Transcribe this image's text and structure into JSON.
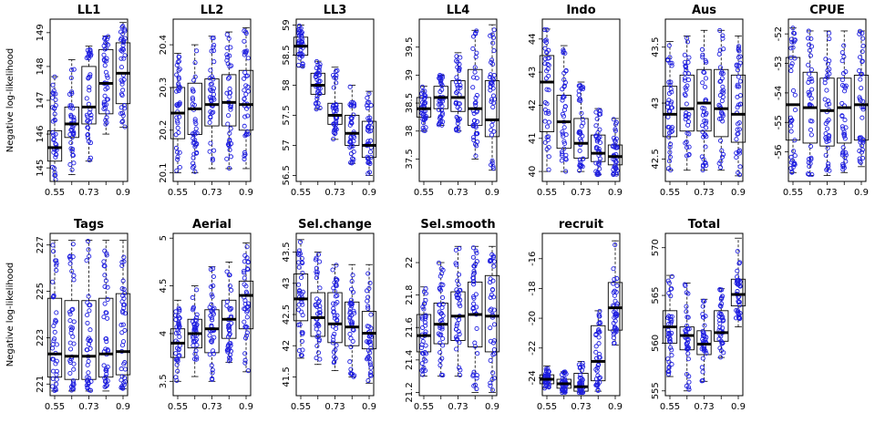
{
  "figure": {
    "ylabel": "Negative log-likelihood",
    "point_color": "#1f1fe0"
  },
  "chart_data": [
    {
      "type": "box",
      "title": "LL1",
      "categories": [
        "0.55",
        "0.64",
        "0.73",
        "0.82",
        "0.9"
      ],
      "x_tick_labels": [
        "0.55",
        "0.73",
        "0.9"
      ],
      "ylim": [
        144.6,
        149.4
      ],
      "y_ticks": [
        145,
        146,
        147,
        148,
        149
      ],
      "series": [
        {
          "median": 145.6,
          "q1": 145.2,
          "q3": 146.1,
          "min": 144.6,
          "max": 147.7
        },
        {
          "median": 146.3,
          "q1": 145.9,
          "q3": 146.8,
          "min": 144.8,
          "max": 148.2
        },
        {
          "median": 146.8,
          "q1": 146.3,
          "q3": 148.0,
          "min": 145.2,
          "max": 148.6
        },
        {
          "median": 147.5,
          "q1": 146.6,
          "q3": 148.5,
          "min": 146.0,
          "max": 148.9
        },
        {
          "median": 147.8,
          "q1": 146.9,
          "q3": 148.7,
          "min": 146.2,
          "max": 149.3
        }
      ]
    },
    {
      "type": "box",
      "title": "LL2",
      "categories": [
        "0.55",
        "0.64",
        "0.73",
        "0.82",
        "0.9"
      ],
      "x_tick_labels": [
        "0.55",
        "0.73",
        "0.9"
      ],
      "ylim": [
        20.08,
        20.46
      ],
      "y_ticks": [
        20.1,
        20.2,
        20.3,
        20.4
      ],
      "series": [
        {
          "median": 20.24,
          "q1": 20.18,
          "q3": 20.3,
          "min": 20.1,
          "max": 20.38
        },
        {
          "median": 20.25,
          "q1": 20.19,
          "q3": 20.31,
          "min": 20.1,
          "max": 20.4
        },
        {
          "median": 20.26,
          "q1": 20.21,
          "q3": 20.32,
          "min": 20.11,
          "max": 20.42
        },
        {
          "median": 20.265,
          "q1": 20.21,
          "q3": 20.33,
          "min": 20.11,
          "max": 20.43
        },
        {
          "median": 20.26,
          "q1": 20.2,
          "q3": 20.34,
          "min": 20.11,
          "max": 20.44
        }
      ]
    },
    {
      "type": "box",
      "title": "LL3",
      "categories": [
        "0.55",
        "0.64",
        "0.73",
        "0.82",
        "0.9"
      ],
      "x_tick_labels": [
        "0.55",
        "0.73",
        "0.9"
      ],
      "ylim": [
        56.4,
        59.1
      ],
      "y_ticks": [
        56.5,
        57.0,
        57.5,
        58.0,
        58.5,
        59.0
      ],
      "series": [
        {
          "median": 58.65,
          "q1": 58.5,
          "q3": 58.8,
          "min": 58.3,
          "max": 59.0
        },
        {
          "median": 58.0,
          "q1": 57.85,
          "q3": 58.2,
          "min": 57.6,
          "max": 58.4
        },
        {
          "median": 57.5,
          "q1": 57.35,
          "q3": 57.7,
          "min": 57.1,
          "max": 58.3
        },
        {
          "median": 57.2,
          "q1": 57.0,
          "q3": 57.5,
          "min": 56.7,
          "max": 58.0
        },
        {
          "median": 57.0,
          "q1": 56.8,
          "q3": 57.4,
          "min": 56.5,
          "max": 57.9
        }
      ]
    },
    {
      "type": "box",
      "title": "LL4",
      "categories": [
        "0.55",
        "0.64",
        "0.73",
        "0.82",
        "0.9"
      ],
      "x_tick_labels": [
        "0.55",
        "0.73",
        "0.9"
      ],
      "ylim": [
        37.1,
        40.0
      ],
      "y_ticks": [
        37.5,
        38.0,
        38.5,
        39.0,
        39.5
      ],
      "series": [
        {
          "median": 38.4,
          "q1": 38.25,
          "q3": 38.6,
          "min": 38.0,
          "max": 38.8
        },
        {
          "median": 38.6,
          "q1": 38.4,
          "q3": 38.8,
          "min": 38.1,
          "max": 39.0
        },
        {
          "median": 38.6,
          "q1": 38.35,
          "q3": 38.9,
          "min": 38.0,
          "max": 39.4
        },
        {
          "median": 38.4,
          "q1": 38.1,
          "q3": 39.1,
          "min": 37.5,
          "max": 39.8
        },
        {
          "median": 38.2,
          "q1": 37.9,
          "q3": 38.9,
          "min": 37.3,
          "max": 39.9
        }
      ]
    },
    {
      "type": "box",
      "title": "Indo",
      "categories": [
        "0.55",
        "0.64",
        "0.73",
        "0.82",
        "0.9"
      ],
      "x_tick_labels": [
        "0.55",
        "0.73",
        "0.9"
      ],
      "ylim": [
        39.7,
        44.6
      ],
      "y_ticks": [
        40,
        41,
        42,
        43,
        44
      ],
      "series": [
        {
          "median": 42.7,
          "q1": 41.2,
          "q3": 43.5,
          "min": 40.0,
          "max": 44.3
        },
        {
          "median": 41.5,
          "q1": 40.7,
          "q3": 42.3,
          "min": 40.0,
          "max": 43.8
        },
        {
          "median": 40.85,
          "q1": 40.4,
          "q3": 41.6,
          "min": 40.0,
          "max": 42.7
        },
        {
          "median": 40.55,
          "q1": 40.3,
          "q3": 41.1,
          "min": 39.9,
          "max": 41.9
        },
        {
          "median": 40.45,
          "q1": 40.2,
          "q3": 40.8,
          "min": 39.9,
          "max": 41.6
        }
      ]
    },
    {
      "type": "box",
      "title": "Aus",
      "categories": [
        "0.55",
        "0.64",
        "0.73",
        "0.82",
        "0.9"
      ],
      "x_tick_labels": [
        "0.55",
        "0.73",
        "0.9"
      ],
      "ylim": [
        42.3,
        43.75
      ],
      "y_ticks": [
        42.5,
        43.0,
        43.5
      ],
      "series": [
        {
          "median": 42.9,
          "q1": 42.7,
          "q3": 43.15,
          "min": 42.4,
          "max": 43.55
        },
        {
          "median": 42.95,
          "q1": 42.75,
          "q3": 43.25,
          "min": 42.4,
          "max": 43.6
        },
        {
          "median": 43.0,
          "q1": 42.75,
          "q3": 43.3,
          "min": 42.4,
          "max": 43.65
        },
        {
          "median": 42.95,
          "q1": 42.7,
          "q3": 43.3,
          "min": 42.4,
          "max": 43.65
        },
        {
          "median": 42.9,
          "q1": 42.65,
          "q3": 43.25,
          "min": 42.35,
          "max": 43.6
        }
      ]
    },
    {
      "type": "box",
      "title": "CPUE",
      "categories": [
        "0.55",
        "0.64",
        "0.73",
        "0.82",
        "0.9"
      ],
      "x_tick_labels": [
        "0.55",
        "0.73",
        "0.9"
      ],
      "ylim": [
        -57.0,
        -51.5
      ],
      "y_ticks": [
        -56,
        -55,
        -54,
        -53,
        -52
      ],
      "series": [
        {
          "median": -54.4,
          "q1": -55.6,
          "q3": -52.8,
          "min": -56.7,
          "max": -51.8
        },
        {
          "median": -54.5,
          "q1": -55.7,
          "q3": -53.3,
          "min": -56.8,
          "max": -51.9
        },
        {
          "median": -54.6,
          "q1": -55.8,
          "q3": -53.5,
          "min": -56.8,
          "max": -51.9
        },
        {
          "median": -54.5,
          "q1": -55.7,
          "q3": -53.5,
          "min": -56.7,
          "max": -51.9
        },
        {
          "median": -54.4,
          "q1": -55.6,
          "q3": -53.4,
          "min": -56.5,
          "max": -51.9
        }
      ]
    },
    {
      "type": "box",
      "title": "Tags",
      "categories": [
        "0.55",
        "0.64",
        "0.73",
        "0.82",
        "0.9"
      ],
      "x_tick_labels": [
        "0.55",
        "0.73",
        "0.9"
      ],
      "ylim": [
        220.5,
        227.5
      ],
      "y_ticks": [
        221,
        223,
        225,
        227
      ],
      "series": [
        {
          "median": 222.3,
          "q1": 221.3,
          "q3": 224.7,
          "min": 220.7,
          "max": 227.2
        },
        {
          "median": 222.2,
          "q1": 221.2,
          "q3": 224.6,
          "min": 220.7,
          "max": 227.2
        },
        {
          "median": 222.2,
          "q1": 221.2,
          "q3": 224.6,
          "min": 220.7,
          "max": 227.2
        },
        {
          "median": 222.3,
          "q1": 221.3,
          "q3": 224.7,
          "min": 220.7,
          "max": 227.2
        },
        {
          "median": 222.4,
          "q1": 221.4,
          "q3": 224.9,
          "min": 220.8,
          "max": 227.2
        }
      ]
    },
    {
      "type": "box",
      "title": "Aerial",
      "categories": [
        "0.55",
        "0.64",
        "0.73",
        "0.82",
        "0.9"
      ],
      "x_tick_labels": [
        "0.55",
        "0.73",
        "0.9"
      ],
      "ylim": [
        3.35,
        5.05
      ],
      "y_ticks": [
        3.5,
        4.0,
        4.5,
        5.0
      ],
      "series": [
        {
          "median": 3.9,
          "q1": 3.75,
          "q3": 4.05,
          "min": 3.5,
          "max": 4.35
        },
        {
          "median": 4.0,
          "q1": 3.85,
          "q3": 4.15,
          "min": 3.55,
          "max": 4.5
        },
        {
          "median": 4.05,
          "q1": 3.8,
          "q3": 4.25,
          "min": 3.5,
          "max": 4.7
        },
        {
          "median": 4.15,
          "q1": 3.95,
          "q3": 4.35,
          "min": 3.7,
          "max": 4.75
        },
        {
          "median": 4.4,
          "q1": 4.05,
          "q3": 4.55,
          "min": 3.6,
          "max": 4.95
        }
      ]
    },
    {
      "type": "box",
      "title": "Sel.change",
      "categories": [
        "0.55",
        "0.64",
        "0.73",
        "0.82",
        "0.9"
      ],
      "x_tick_labels": [
        "0.55",
        "0.73",
        "0.9"
      ],
      "ylim": [
        41.2,
        43.8
      ],
      "y_ticks": [
        41.5,
        42.0,
        42.5,
        43.0,
        43.5
      ],
      "series": [
        {
          "median": 42.75,
          "q1": 42.4,
          "q3": 43.15,
          "min": 41.8,
          "max": 43.7
        },
        {
          "median": 42.45,
          "q1": 42.15,
          "q3": 42.85,
          "min": 41.7,
          "max": 43.5
        },
        {
          "median": 42.35,
          "q1": 42.05,
          "q3": 42.85,
          "min": 41.6,
          "max": 43.3
        },
        {
          "median": 42.3,
          "q1": 42.0,
          "q3": 42.7,
          "min": 41.5,
          "max": 43.3
        },
        {
          "median": 42.2,
          "q1": 41.95,
          "q3": 42.55,
          "min": 41.4,
          "max": 43.3
        }
      ]
    },
    {
      "type": "box",
      "title": "Sel.smooth",
      "categories": [
        "0.55",
        "0.64",
        "0.73",
        "0.82",
        "0.9"
      ],
      "x_tick_labels": [
        "0.55",
        "0.73",
        "0.9"
      ],
      "ylim": [
        21.18,
        22.18
      ],
      "y_ticks": [
        21.2,
        21.4,
        21.6,
        21.8,
        22.0
      ],
      "series": [
        {
          "median": 21.55,
          "q1": 21.45,
          "q3": 21.68,
          "min": 21.3,
          "max": 21.85
        },
        {
          "median": 21.62,
          "q1": 21.5,
          "q3": 21.75,
          "min": 21.3,
          "max": 22.0
        },
        {
          "median": 21.67,
          "q1": 21.52,
          "q3": 21.82,
          "min": 21.3,
          "max": 22.1
        },
        {
          "median": 21.68,
          "q1": 21.48,
          "q3": 21.88,
          "min": 21.2,
          "max": 22.1
        },
        {
          "median": 21.67,
          "q1": 21.45,
          "q3": 21.92,
          "min": 21.2,
          "max": 22.1
        }
      ]
    },
    {
      "type": "box",
      "title": "recruit",
      "categories": [
        "0.55",
        "0.64",
        "0.73",
        "0.82",
        "0.9"
      ],
      "x_tick_labels": [
        "0.55",
        "0.73",
        "0.9"
      ],
      "ylim": [
        -25.2,
        -14.3
      ],
      "y_ticks": [
        -24,
        -22,
        -20,
        -18,
        -16
      ],
      "series": [
        {
          "median": -24.1,
          "q1": -24.4,
          "q3": -23.8,
          "min": -24.7,
          "max": -23.2
        },
        {
          "median": -24.4,
          "q1": -24.7,
          "q3": -24.1,
          "min": -25.0,
          "max": -23.6
        },
        {
          "median": -24.6,
          "q1": -24.9,
          "q3": -23.7,
          "min": -25.0,
          "max": -22.9
        },
        {
          "median": -22.9,
          "q1": -24.2,
          "q3": -20.5,
          "min": -24.9,
          "max": -19.5
        },
        {
          "median": -19.3,
          "q1": -20.8,
          "q3": -17.6,
          "min": -21.8,
          "max": -14.8
        }
      ]
    },
    {
      "type": "box",
      "title": "Total",
      "categories": [
        "0.55",
        "0.64",
        "0.73",
        "0.82",
        "0.9"
      ],
      "x_tick_labels": [
        "0.55",
        "0.73",
        "0.9"
      ],
      "ylim": [
        554.5,
        571.5
      ],
      "y_ticks": [
        555,
        560,
        565,
        570
      ],
      "series": [
        {
          "median": 561.7,
          "q1": 560.0,
          "q3": 563.4,
          "min": 556.5,
          "max": 567.1
        },
        {
          "median": 560.8,
          "q1": 559.3,
          "q3": 561.7,
          "min": 555.0,
          "max": 566.3
        },
        {
          "median": 559.9,
          "q1": 558.8,
          "q3": 561.3,
          "min": 556.0,
          "max": 564.6
        },
        {
          "median": 561.1,
          "q1": 560.2,
          "q3": 563.4,
          "min": 558.5,
          "max": 565.7
        },
        {
          "median": 565.1,
          "q1": 563.9,
          "q3": 566.7,
          "min": 561.7,
          "max": 571.0
        }
      ]
    }
  ]
}
